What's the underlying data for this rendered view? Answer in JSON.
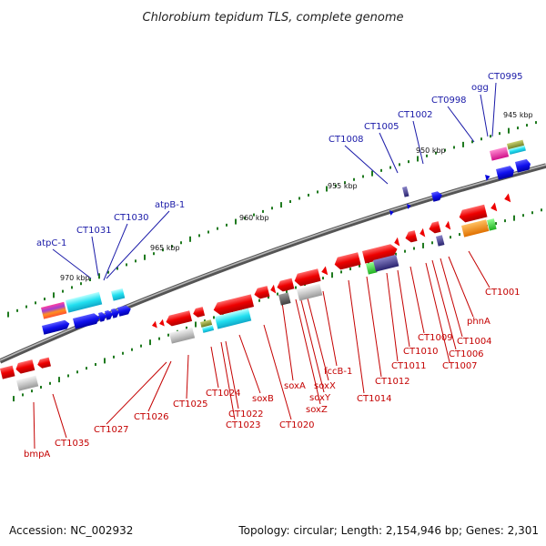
{
  "title": "Chlorobium tepidum TLS, complete genome",
  "footer": {
    "accession": "Accession: NC_002932",
    "summary": "Topology: circular; Length: 2,154,946 bp; Genes: 2,301"
  },
  "colors": {
    "backbone": "#8a8a8a",
    "tick": "#1f7a1f",
    "top_label": "#1a1aa8",
    "bottom_label": "#c40000"
  },
  "scale_labels": [
    "945 kbp",
    "950 kbp",
    "955 kbp",
    "960 kbp",
    "965 kbp",
    "970 kbp"
  ],
  "top_labels": [
    "CT0995",
    "ogg",
    "CT0998",
    "CT1002",
    "CT1005",
    "CT1008",
    "atpB-1",
    "CT1030",
    "CT1031",
    "atpC-1"
  ],
  "bottom_labels": [
    "CT1001",
    "phnA",
    "CT1004",
    "CT1006",
    "CT1007",
    "CT1009",
    "CT1010",
    "CT1011",
    "CT1012",
    "CT1014",
    "fccB-1",
    "soxX",
    "soxY",
    "soxZ",
    "soxA",
    "CT1020",
    "soxB",
    "CT1022",
    "CT1023",
    "CT1024",
    "CT1025",
    "CT1026",
    "CT1027",
    "CT1035",
    "bmpA"
  ]
}
